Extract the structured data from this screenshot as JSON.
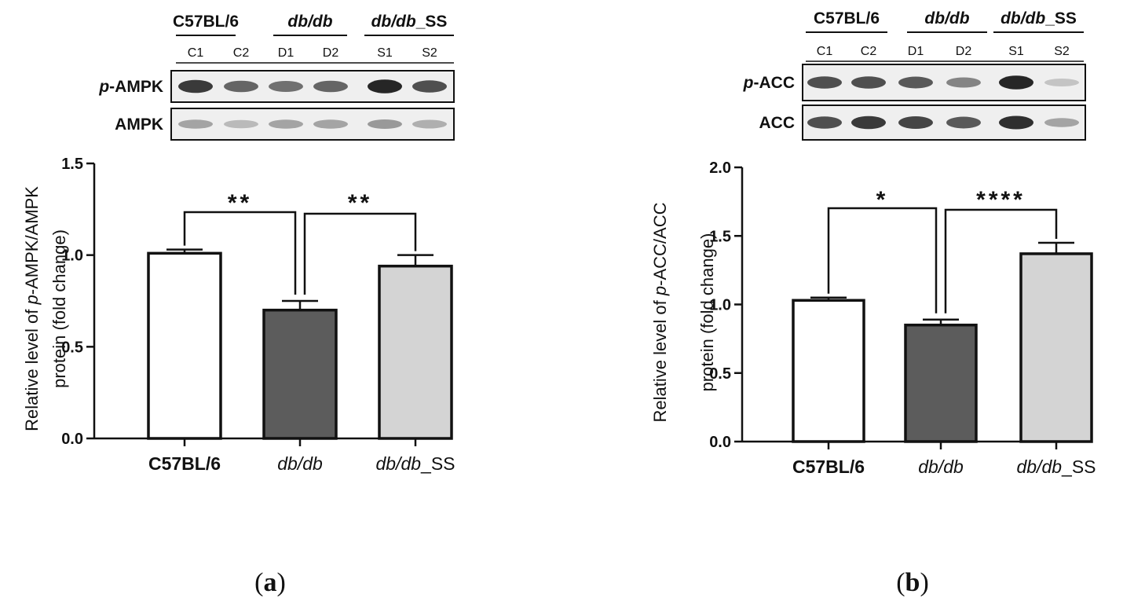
{
  "chart_data": [
    {
      "type": "bar",
      "panel": "(a)",
      "panel_prefix": "(",
      "panel_letter": "a",
      "panel_suffix": ")",
      "blot": {
        "groups": [
          {
            "label": "C57BL/6",
            "italic": false
          },
          {
            "label": "db/db",
            "italic": true
          },
          {
            "label": "db/db",
            "suffix": "_SS",
            "italic": true
          }
        ],
        "lanes": [
          "C1",
          "C2",
          "D1",
          "D2",
          "S1",
          "S2"
        ],
        "rows": [
          {
            "label_prefix": "p",
            "label": "-AMPK",
            "band_intensity": [
              0.85,
              0.65,
              0.6,
              0.65,
              0.95,
              0.75
            ]
          },
          {
            "label_prefix": "",
            "label": "AMPK",
            "band_intensity": [
              0.35,
              0.25,
              0.35,
              0.35,
              0.4,
              0.3
            ]
          }
        ]
      },
      "categories": [
        {
          "label": "C57BL/6",
          "italic": false
        },
        {
          "label": "db/db",
          "italic": true
        },
        {
          "label": "db/db",
          "suffix": "_SS",
          "italic": true
        }
      ],
      "values": [
        1.01,
        0.7,
        0.94
      ],
      "errors": [
        0.02,
        0.05,
        0.06
      ],
      "bar_colors": [
        "#ffffff",
        "#5c5c5c",
        "#d4d4d4"
      ],
      "ylabel_line1_prefix": "Relative level of ",
      "ylabel_line1_italic": "p",
      "ylabel_line1_suffix": "-AMPK/AMPK",
      "ylabel_line2": "protein (fold change)",
      "ylim": [
        0,
        1.5
      ],
      "yticks": [
        "0.0",
        "0.5",
        "1.0",
        "1.5"
      ],
      "significance": [
        {
          "from": 0,
          "to": 1,
          "label": "**"
        },
        {
          "from": 1,
          "to": 2,
          "label": "**"
        }
      ]
    },
    {
      "type": "bar",
      "panel": "(b)",
      "panel_prefix": "(",
      "panel_letter": "b",
      "panel_suffix": ")",
      "blot": {
        "groups": [
          {
            "label": "C57BL/6",
            "italic": false
          },
          {
            "label": "db/db",
            "italic": true
          },
          {
            "label": "db/db",
            "suffix": "_SS",
            "italic": true
          }
        ],
        "lanes": [
          "C1",
          "C2",
          "D1",
          "D2",
          "S1",
          "S2"
        ],
        "rows": [
          {
            "label_prefix": "p",
            "label": "-ACC",
            "band_intensity": [
              0.75,
              0.75,
              0.7,
              0.5,
              0.95,
              0.2
            ]
          },
          {
            "label_prefix": "",
            "label": "ACC",
            "band_intensity": [
              0.75,
              0.85,
              0.8,
              0.7,
              0.9,
              0.35
            ]
          }
        ]
      },
      "categories": [
        {
          "label": "C57BL/6",
          "italic": false
        },
        {
          "label": "db/db",
          "italic": true
        },
        {
          "label": "db/db",
          "suffix": "_SS",
          "italic": true
        }
      ],
      "values": [
        1.03,
        0.85,
        1.37
      ],
      "errors": [
        0.02,
        0.04,
        0.08
      ],
      "bar_colors": [
        "#ffffff",
        "#5c5c5c",
        "#d4d4d4"
      ],
      "ylabel_line1_prefix": "Relative level of ",
      "ylabel_line1_italic": "p",
      "ylabel_line1_suffix": "-ACC/ACC",
      "ylabel_line2": "protein (fold change)",
      "ylim": [
        0,
        2.0
      ],
      "yticks": [
        "0.0",
        "0.5",
        "1.0",
        "1.5",
        "2.0"
      ],
      "significance": [
        {
          "from": 0,
          "to": 1,
          "label": "*"
        },
        {
          "from": 1,
          "to": 2,
          "label": "****"
        }
      ]
    }
  ]
}
